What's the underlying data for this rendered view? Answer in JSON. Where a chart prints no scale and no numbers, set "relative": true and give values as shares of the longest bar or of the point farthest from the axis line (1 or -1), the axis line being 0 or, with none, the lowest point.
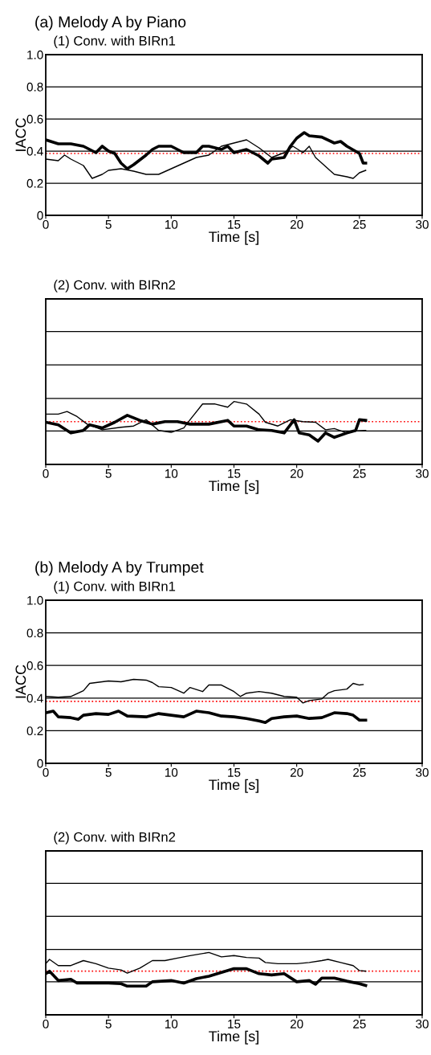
{
  "chart_data": [
    {
      "type": "line",
      "annotations": [
        "(a) Melody A by Piano"
      ],
      "title": "(1) Conv. with BIRn1",
      "xlabel": "Time [s]",
      "ylabel": "IACC",
      "xlim": [
        0,
        30
      ],
      "xticks": [
        0,
        5,
        10,
        15,
        20,
        25,
        30
      ],
      "ylim": [
        0,
        1
      ],
      "yticks": [
        0,
        0.2,
        0.4,
        0.6,
        0.8,
        {
          "value": 1,
          "label": "1.0"
        }
      ],
      "grid": "y",
      "line_style": "solid",
      "ref_lines": [
        {
          "axis": "y",
          "value": 0.385,
          "color": "#ff0000",
          "line_style": "dotted"
        }
      ],
      "series": [
        {
          "color": "#000000",
          "x": [
            0,
            1,
            2,
            3,
            4,
            4.5,
            5,
            5.5,
            6,
            6.5,
            7,
            8,
            8.5,
            9,
            10,
            11,
            12,
            12.5,
            13,
            14,
            14.5,
            15,
            16,
            17,
            17.7,
            18,
            19,
            19.5,
            20,
            20.6,
            21,
            22,
            23,
            23.5,
            24,
            25,
            25.3,
            25.5
          ],
          "values": [
            0.47,
            0.445,
            0.445,
            0.43,
            0.39,
            0.43,
            0.4,
            0.385,
            0.325,
            0.29,
            0.315,
            0.375,
            0.41,
            0.43,
            0.43,
            0.39,
            0.39,
            0.43,
            0.43,
            0.41,
            0.43,
            0.39,
            0.41,
            0.37,
            0.325,
            0.35,
            0.36,
            0.43,
            0.48,
            0.515,
            0.495,
            0.487,
            0.45,
            0.46,
            0.43,
            0.385,
            0.325,
            0.325
          ]
        },
        {
          "color": "#000000",
          "x": [
            0,
            1,
            1.5,
            2,
            3,
            3.7,
            4.5,
            5,
            6,
            7,
            8,
            9,
            10,
            11,
            12,
            13,
            14,
            15,
            16,
            17,
            18,
            19,
            19.7,
            20.5,
            21,
            21.5,
            22,
            23,
            24,
            24.5,
            25,
            25.5
          ],
          "values": [
            0.35,
            0.34,
            0.375,
            0.35,
            0.31,
            0.23,
            0.255,
            0.28,
            0.29,
            0.275,
            0.255,
            0.255,
            0.29,
            0.325,
            0.36,
            0.375,
            0.43,
            0.45,
            0.47,
            0.42,
            0.36,
            0.39,
            0.43,
            0.39,
            0.43,
            0.36,
            0.325,
            0.255,
            0.24,
            0.23,
            0.265,
            0.28
          ]
        }
      ]
    },
    {
      "type": "line",
      "title": "(2) Conv. with BIRn2",
      "xlabel": "Time [s]",
      "xlim": [
        0,
        30
      ],
      "xticks": [
        0,
        5,
        10,
        15,
        20,
        25,
        30
      ],
      "relative": true,
      "tick_labels": "x",
      "line_style": "solid",
      "ref_lines": [
        {
          "axis": "y",
          "value": 0.68,
          "color": "#ff0000",
          "line_style": "dotted"
        },
        {
          "axis": "y",
          "value": 0.53,
          "color": "#000000",
          "line_style": "solid"
        },
        {
          "axis": "y",
          "value": 1.05,
          "color": "#000000",
          "line_style": "solid"
        },
        {
          "axis": "y",
          "value": 1.58,
          "color": "#000000",
          "line_style": "solid"
        },
        {
          "axis": "y",
          "value": 2.11,
          "color": "#000000",
          "line_style": "solid"
        }
      ],
      "series": [
        {
          "color": "#000000",
          "x": [
            0,
            1,
            2,
            3,
            3.5,
            4.5,
            5.5,
            6.5,
            7.5,
            8.5,
            9.5,
            10.5,
            11.5,
            13,
            14.5,
            15,
            16,
            17,
            18,
            19,
            19.5,
            19.8,
            20.2,
            21,
            21.7,
            22.3,
            23,
            24,
            24.7,
            25,
            25.5
          ],
          "values": [
            0.67,
            0.63,
            0.5,
            0.54,
            0.63,
            0.58,
            0.67,
            0.78,
            0.7,
            0.64,
            0.68,
            0.68,
            0.64,
            0.64,
            0.7,
            0.61,
            0.61,
            0.55,
            0.54,
            0.5,
            0.63,
            0.71,
            0.5,
            0.47,
            0.37,
            0.5,
            0.43,
            0.5,
            0.54,
            0.71,
            0.7
          ]
        },
        {
          "color": "#000000",
          "x": [
            0,
            1,
            1.7,
            2.5,
            3.3,
            4.5,
            6,
            7,
            8,
            9,
            10,
            11,
            11.5,
            12.5,
            13.5,
            14.5,
            15,
            16,
            17,
            17.5,
            18.5,
            19.5,
            20.5,
            21.5,
            22.3,
            23,
            24,
            24.5,
            25.5
          ],
          "values": [
            0.8,
            0.8,
            0.84,
            0.76,
            0.64,
            0.55,
            0.59,
            0.61,
            0.71,
            0.54,
            0.51,
            0.58,
            0.71,
            0.96,
            0.96,
            0.91,
            1,
            0.96,
            0.8,
            0.67,
            0.61,
            0.71,
            0.68,
            0.67,
            0.55,
            0.57,
            0.5,
            0.53,
            0.54
          ]
        }
      ]
    },
    {
      "type": "line",
      "annotations": [
        "(b) Melody A by Trumpet"
      ],
      "title": "(1) Conv. with BIRn1",
      "xlabel": "Time [s]",
      "ylabel": "IACC",
      "xlim": [
        0,
        30
      ],
      "xticks": [
        0,
        5,
        10,
        15,
        20,
        25,
        30
      ],
      "ylim": [
        0,
        1
      ],
      "yticks": [
        0,
        0.2,
        0.4,
        0.6,
        0.8,
        {
          "value": 1,
          "label": "1.0"
        }
      ],
      "grid": "y",
      "line_style": "solid",
      "ref_lines": [
        {
          "axis": "y",
          "value": 0.38,
          "color": "#ff0000",
          "line_style": "dotted"
        }
      ],
      "series": [
        {
          "color": "#000000",
          "x": [
            0,
            0.6,
            1,
            2,
            2.6,
            3,
            4,
            5,
            5.8,
            6.5,
            8,
            9,
            10,
            11,
            12,
            13,
            14,
            15,
            16,
            17,
            17.5,
            18,
            19,
            20,
            21,
            22,
            23,
            24,
            24.5,
            25,
            25.5
          ],
          "values": [
            0.31,
            0.32,
            0.285,
            0.28,
            0.27,
            0.295,
            0.305,
            0.3,
            0.32,
            0.29,
            0.285,
            0.305,
            0.295,
            0.285,
            0.32,
            0.31,
            0.29,
            0.285,
            0.275,
            0.26,
            0.25,
            0.275,
            0.285,
            0.29,
            0.275,
            0.28,
            0.31,
            0.305,
            0.295,
            0.265,
            0.265
          ]
        },
        {
          "color": "#000000",
          "x": [
            0,
            1,
            2,
            3,
            3.5,
            5,
            6,
            7,
            8,
            8.5,
            9,
            10,
            11,
            11.5,
            12.5,
            13,
            14,
            15,
            15.5,
            16,
            17,
            18,
            19,
            20,
            20.5,
            21,
            22,
            22.5,
            23,
            24,
            24.5,
            25,
            25.3
          ],
          "values": [
            0.41,
            0.405,
            0.41,
            0.445,
            0.49,
            0.505,
            0.5,
            0.515,
            0.51,
            0.495,
            0.47,
            0.465,
            0.43,
            0.465,
            0.44,
            0.48,
            0.48,
            0.44,
            0.41,
            0.43,
            0.44,
            0.43,
            0.41,
            0.405,
            0.37,
            0.385,
            0.395,
            0.43,
            0.445,
            0.455,
            0.49,
            0.48,
            0.483
          ]
        }
      ]
    },
    {
      "type": "line",
      "title": "(2) Conv. with BIRn2",
      "xlabel": "Time [s]",
      "xlim": [
        0,
        30
      ],
      "xticks": [
        0,
        5,
        10,
        15,
        20,
        25,
        30
      ],
      "relative": true,
      "tick_labels": "x",
      "line_style": "solid",
      "ref_lines": [
        {
          "axis": "y",
          "value": 0.7,
          "color": "#ff0000",
          "line_style": "dotted"
        },
        {
          "axis": "y",
          "value": 0.53,
          "color": "#000000",
          "line_style": "solid"
        },
        {
          "axis": "y",
          "value": 1.05,
          "color": "#000000",
          "line_style": "solid"
        },
        {
          "axis": "y",
          "value": 1.58,
          "color": "#000000",
          "line_style": "solid"
        },
        {
          "axis": "y",
          "value": 2.11,
          "color": "#000000",
          "line_style": "solid"
        }
      ],
      "series": [
        {
          "color": "#000000",
          "x": [
            0,
            0.3,
            1,
            2,
            2.5,
            4,
            5,
            6,
            6.5,
            8,
            8.5,
            10,
            11,
            12,
            13,
            14,
            15,
            16,
            17,
            18,
            19,
            20,
            21,
            21.5,
            22,
            23,
            24,
            25,
            25.5
          ],
          "values": [
            0.66,
            0.7,
            0.55,
            0.57,
            0.51,
            0.51,
            0.51,
            0.5,
            0.46,
            0.46,
            0.53,
            0.55,
            0.51,
            0.58,
            0.62,
            0.68,
            0.74,
            0.74,
            0.66,
            0.64,
            0.66,
            0.53,
            0.55,
            0.49,
            0.59,
            0.59,
            0.54,
            0.5,
            0.47
          ]
        },
        {
          "color": "#000000",
          "x": [
            0,
            0.3,
            1,
            2,
            3,
            4,
            5,
            6,
            6.5,
            7.5,
            8.5,
            9.5,
            10.5,
            11.5,
            13,
            14,
            15,
            16,
            17,
            17.5,
            18.5,
            20,
            21,
            22,
            22.5,
            23.5,
            24.5,
            25,
            25.5
          ],
          "values": [
            0.82,
            0.89,
            0.79,
            0.79,
            0.87,
            0.82,
            0.75,
            0.72,
            0.67,
            0.75,
            0.87,
            0.87,
            0.91,
            0.95,
            1,
            0.93,
            0.95,
            0.92,
            0.91,
            0.84,
            0.82,
            0.82,
            0.84,
            0.87,
            0.89,
            0.84,
            0.79,
            0.71,
            0.7
          ]
        }
      ]
    }
  ]
}
